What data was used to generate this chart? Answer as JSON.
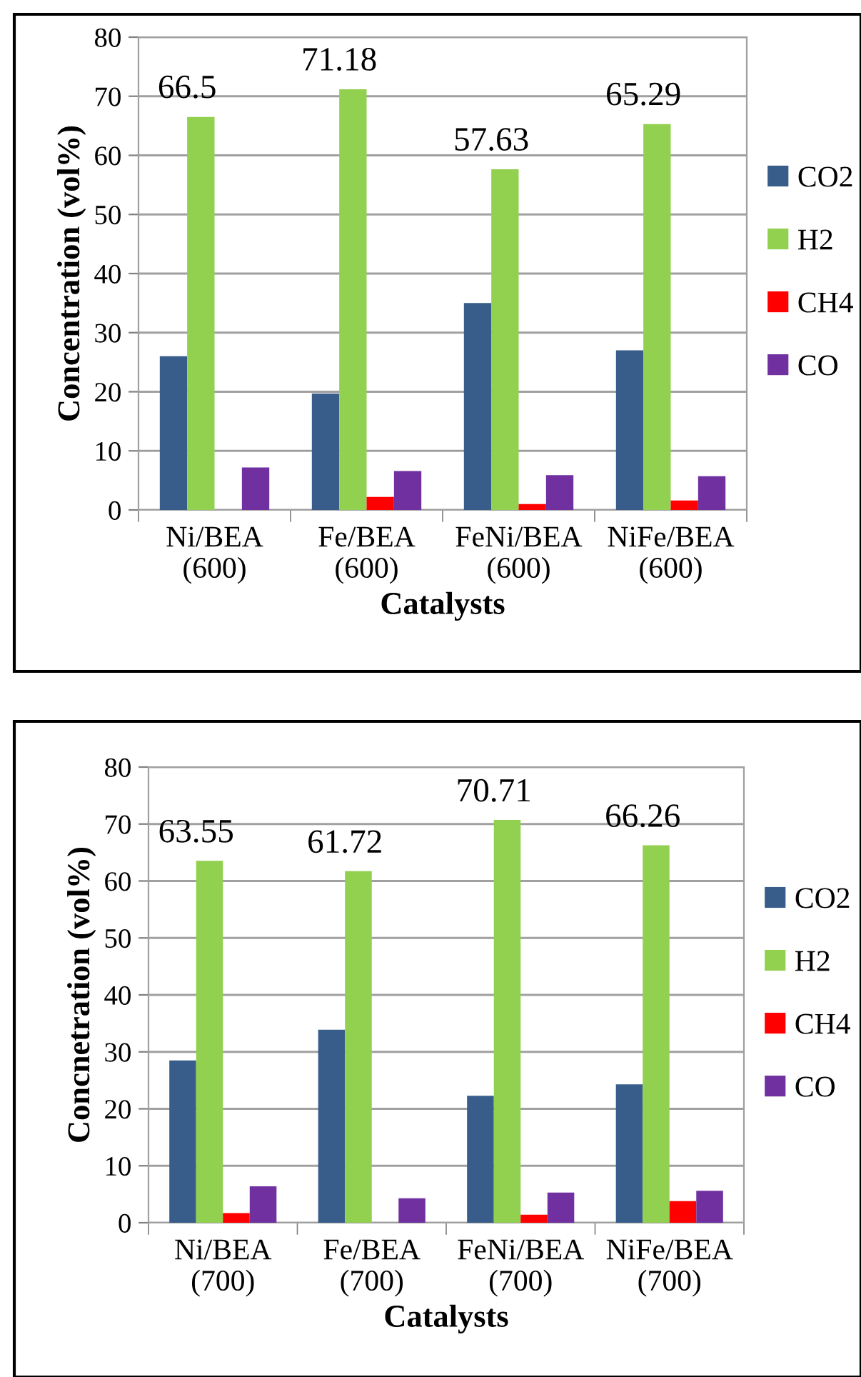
{
  "chart_data": [
    {
      "type": "bar",
      "xlabel": "Catalysts",
      "ylabel": "Concentration (vol%)",
      "categories": [
        "Ni/BEA\n(600)",
        "Fe/BEA\n(600)",
        "FeNi/BEA\n(600)",
        "NiFe/BEA\n(600)"
      ],
      "series": [
        {
          "name": "CO2",
          "color": "#385d8a",
          "values": [
            26.0,
            19.7,
            35.0,
            27.0
          ]
        },
        {
          "name": "H2",
          "color": "#92d050",
          "values": [
            66.5,
            71.18,
            57.63,
            65.29
          ],
          "value_labels": [
            "66.5",
            "71.18",
            "57.63",
            "65.29"
          ]
        },
        {
          "name": "CH4",
          "color": "#ff0000",
          "values": [
            0,
            2.2,
            1.0,
            1.6
          ]
        },
        {
          "name": "CO",
          "color": "#7030a0",
          "values": [
            7.2,
            6.6,
            5.9,
            5.7
          ]
        }
      ],
      "ylim": [
        0,
        80
      ],
      "yticks": [
        0,
        10,
        20,
        30,
        40,
        50,
        60,
        70,
        80
      ],
      "grid": "y",
      "legend": "right"
    },
    {
      "type": "bar",
      "xlabel": "Catalysts",
      "ylabel": "Concnetration (vol%)",
      "categories": [
        "Ni/BEA\n(700)",
        "Fe/BEA\n(700)",
        "FeNi/BEA\n(700)",
        "NiFe/BEA\n(700)"
      ],
      "series": [
        {
          "name": "CO2",
          "color": "#385d8a",
          "values": [
            28.5,
            33.9,
            22.3,
            24.3
          ]
        },
        {
          "name": "H2",
          "color": "#92d050",
          "values": [
            63.55,
            61.72,
            70.71,
            66.26
          ],
          "value_labels": [
            "63.55",
            "61.72",
            "70.71",
            "66.26"
          ]
        },
        {
          "name": "CH4",
          "color": "#ff0000",
          "values": [
            1.7,
            0,
            1.4,
            3.8
          ]
        },
        {
          "name": "CO",
          "color": "#7030a0",
          "values": [
            6.4,
            4.3,
            5.3,
            5.6
          ]
        }
      ],
      "ylim": [
        0,
        80
      ],
      "yticks": [
        0,
        10,
        20,
        30,
        40,
        50,
        60,
        70,
        80
      ],
      "grid": "y",
      "legend": "right"
    }
  ]
}
